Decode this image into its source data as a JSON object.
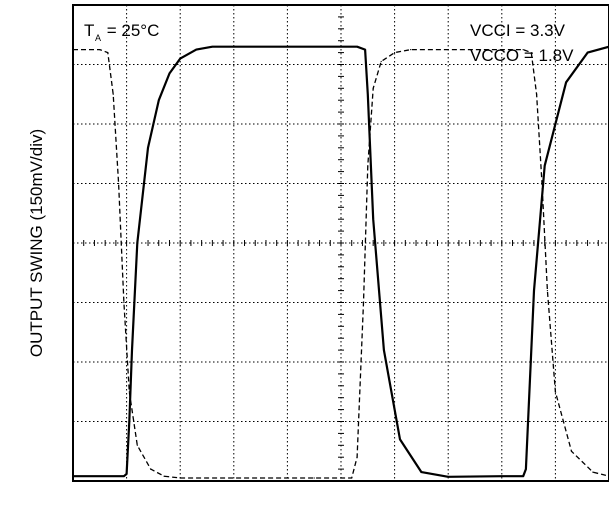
{
  "chart_data": {
    "type": "line",
    "ylabel": "OUTPUT SWING (150mV/div)",
    "xlabel": "",
    "title": "",
    "annotations": {
      "temperature": {
        "prefix": "T",
        "subscript": "A",
        "suffix": " = 25°C"
      },
      "vcci": "VCCI = 3.3V",
      "vcco": "VCCO = 1.8V"
    },
    "grid": true,
    "divisions": {
      "x": 10,
      "y": 8
    },
    "ylim": [
      0,
      8
    ],
    "xlim": [
      0,
      10
    ],
    "series": [
      {
        "style": "solid",
        "x": [
          0.0,
          0.95,
          1.0,
          1.05,
          1.1,
          1.2,
          1.4,
          1.6,
          1.8,
          2.0,
          2.3,
          2.6,
          3.0,
          4.0,
          5.0,
          5.3,
          5.45,
          5.5,
          5.6,
          5.8,
          6.1,
          6.5,
          7.0,
          8.0,
          8.4,
          8.45,
          8.5,
          8.6,
          8.8,
          9.2,
          9.6,
          10.0
        ],
        "y": [
          0.08,
          0.08,
          0.12,
          1.0,
          2.2,
          4.0,
          5.6,
          6.4,
          6.85,
          7.1,
          7.25,
          7.3,
          7.3,
          7.3,
          7.3,
          7.3,
          7.25,
          6.5,
          4.4,
          2.2,
          0.7,
          0.15,
          0.07,
          0.08,
          0.08,
          0.2,
          1.2,
          3.2,
          5.3,
          6.7,
          7.2,
          7.3
        ]
      },
      {
        "style": "dashed",
        "x": [
          0.0,
          0.5,
          0.65,
          0.75,
          0.85,
          0.95,
          1.05,
          1.2,
          1.45,
          1.7,
          2.0,
          2.5,
          3.5,
          4.5,
          5.2,
          5.3,
          5.42,
          5.5,
          5.6,
          5.75,
          6.0,
          6.3,
          7.0,
          8.0,
          8.4,
          8.55,
          8.65,
          8.75,
          8.85,
          9.0,
          9.3,
          9.7,
          10.0
        ],
        "y": [
          7.25,
          7.25,
          7.2,
          6.5,
          5.0,
          3.0,
          1.5,
          0.6,
          0.2,
          0.08,
          0.05,
          0.05,
          0.05,
          0.05,
          0.05,
          0.4,
          3.0,
          5.3,
          6.6,
          7.05,
          7.2,
          7.25,
          7.25,
          7.25,
          7.25,
          7.2,
          6.5,
          5.0,
          3.2,
          1.5,
          0.5,
          0.15,
          0.08
        ]
      }
    ]
  }
}
